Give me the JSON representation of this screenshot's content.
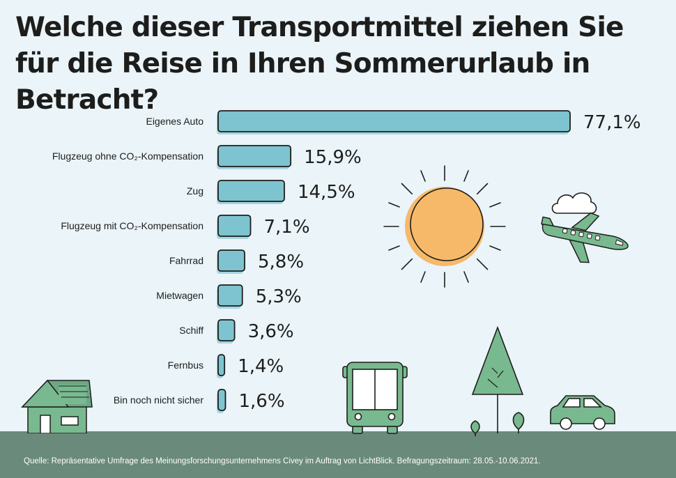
{
  "chart_data": {
    "type": "bar",
    "orientation": "horizontal",
    "title": "Welche dieser Transportmittel ziehen Sie für die Reise in Ihren Sommerurlaub in Betracht?",
    "categories": [
      "Eigenes Auto",
      "Flugzeug ohne CO₂-Kompensation",
      "Zug",
      "Flugzeug mit CO₂-Kompensation",
      "Fahrrad",
      "Mietwagen",
      "Schiff",
      "Fernbus",
      "Bin noch nicht sicher"
    ],
    "values": [
      77.1,
      15.9,
      14.5,
      7.1,
      5.8,
      5.3,
      3.6,
      1.4,
      1.6
    ],
    "value_labels": [
      "77,1%",
      "15,9%",
      "14,5%",
      "7,1%",
      "5,8%",
      "5,3%",
      "3,6%",
      "1,4%",
      "1,6%"
    ],
    "xlim": [
      0,
      77.1
    ],
    "grid": false,
    "legend": "none",
    "colors": {
      "bar": "#7ec4d0",
      "outline": "#1d1d1b",
      "shadow": "#a8d4de"
    }
  },
  "source": "Quelle: Repräsentative Umfrage des Meinungsforschungsunternehmens Civey im Auftrag von LichtBlick. Befragungszeitraum: 28.05.-10.06.2021.",
  "colors": {
    "background": "#eaf4f9",
    "ground": "#6a8a7b",
    "sun": "#f6b96a",
    "green": "#79b98f"
  },
  "illustrations": [
    "sun-icon",
    "airplane-icon",
    "cloud-icon",
    "house-icon",
    "bus-icon",
    "tree-icon",
    "car-icon"
  ]
}
